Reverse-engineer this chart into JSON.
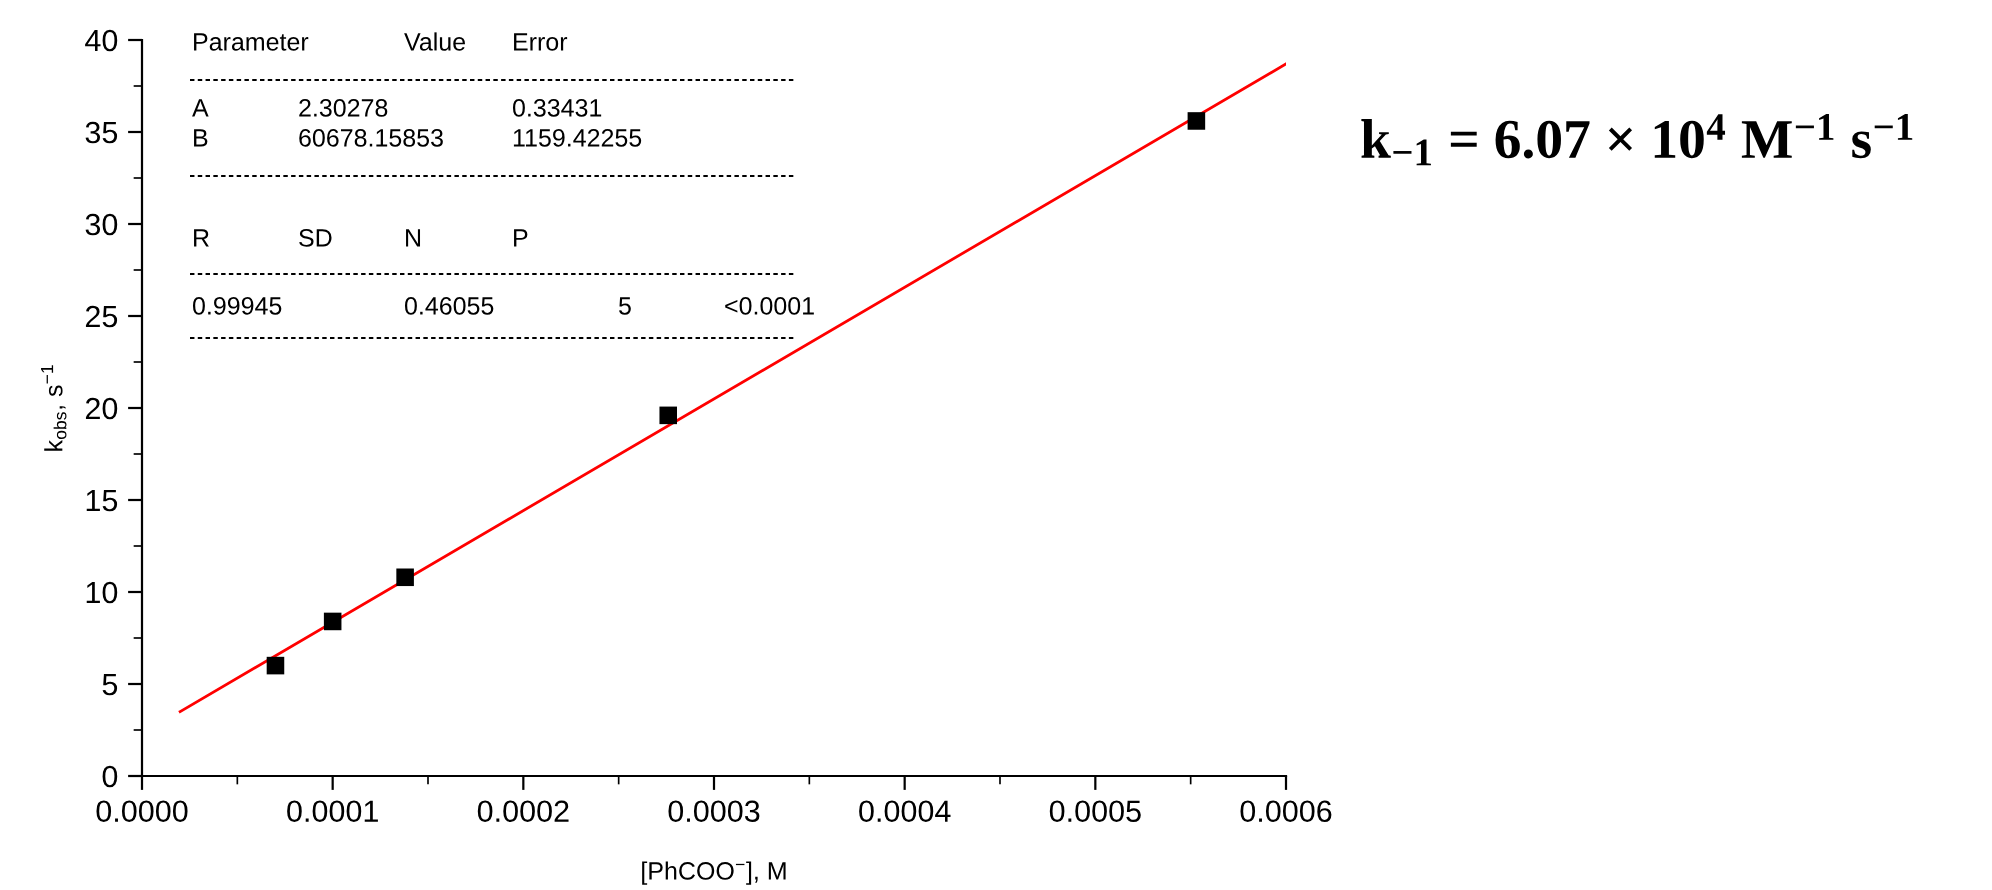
{
  "chart_data": {
    "type": "scatter",
    "xlabel": "[PhCOO$^{−}$], M",
    "ylabel": "k$_{obs}$, s$^{−1}$",
    "series": [
      {
        "color": "#000000",
        "marker": "square",
        "x": [
          7e-05,
          0.0001,
          0.000138,
          0.000276,
          0.000553
        ],
        "values": [
          6.0,
          8.4,
          10.8,
          19.6,
          35.6
        ]
      },
      {
        "type": "line",
        "color": "#ff0000",
        "marker": "none",
        "line_style": "solid",
        "x": [
          2e-05,
          0.0006
        ],
        "values": [
          3.5,
          38.7
        ]
      }
    ],
    "xlim": [
      0,
      0.0006
    ],
    "ylim": [
      0,
      40
    ],
    "xticks": [
      {
        "value": 0,
        "label": "0.0000"
      },
      {
        "value": 0.0001,
        "label": "0.0001"
      },
      {
        "value": 0.0002,
        "label": "0.0002"
      },
      {
        "value": 0.0003,
        "label": "0.0003"
      },
      {
        "value": 0.0004,
        "label": "0.0004"
      },
      {
        "value": 0.0005,
        "label": "0.0005"
      },
      {
        "value": 0.0006,
        "label": "0.0006"
      }
    ],
    "yticks": [
      0,
      5,
      10,
      15,
      20,
      25,
      30,
      35,
      40
    ],
    "grid": false,
    "legend": false,
    "annotations": [
      "Parameter",
      "Value",
      "Error",
      "A",
      "2.30278",
      "0.33431",
      "B",
      "60678.15853",
      "1159.42255",
      "R",
      "SD",
      "N",
      "P",
      "0.99945",
      "0.46055",
      "5",
      "<0.0001",
      "k$_{−1}$ = 6.07 × 10$^{4}$ M$^{−1}$ s$^{−1}$"
    ]
  }
}
